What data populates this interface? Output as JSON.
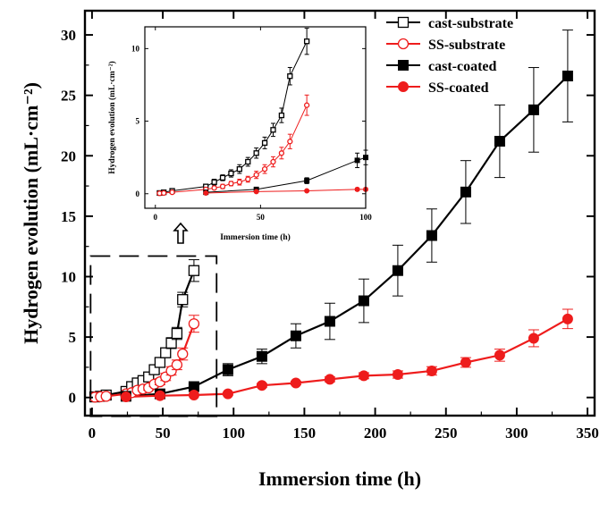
{
  "chart_data": [
    {
      "type": "line",
      "role": "main",
      "xlabel": "Immersion time (h)",
      "ylabel": "Hydrogen evolution (mL·cm⁻²)",
      "xlim": [
        -5,
        355
      ],
      "ylim": [
        -1.5,
        32
      ],
      "xticks": [
        0,
        50,
        100,
        150,
        200,
        250,
        300,
        350
      ],
      "xtick_labels": [
        "0",
        "50",
        "100",
        "150",
        "200",
        "250",
        "300",
        "350"
      ],
      "yticks": [
        0,
        5,
        10,
        15,
        20,
        25,
        30
      ],
      "ytick_labels": [
        "0",
        "5",
        "10",
        "15",
        "20",
        "25",
        "30"
      ],
      "legend_position": "top-right",
      "series": [
        {
          "name": "cast-substrate",
          "color": "#000000",
          "marker": "open-square",
          "x": [
            2,
            6,
            10,
            24,
            28,
            32,
            36,
            40,
            44,
            48,
            52,
            56,
            60,
            64,
            72
          ],
          "y": [
            0.05,
            0.1,
            0.2,
            0.5,
            0.9,
            1.2,
            1.4,
            1.7,
            2.3,
            2.9,
            3.7,
            4.5,
            5.3,
            8.1,
            10.5
          ],
          "err": [
            0.05,
            0.05,
            0.1,
            0.15,
            0.2,
            0.2,
            0.25,
            0.3,
            0.3,
            0.35,
            0.4,
            0.45,
            0.5,
            0.6,
            0.9
          ]
        },
        {
          "name": "SS-substrate",
          "color": "#ee1c1c",
          "marker": "open-circle",
          "x": [
            2,
            6,
            10,
            24,
            28,
            32,
            36,
            40,
            44,
            48,
            52,
            56,
            60,
            64,
            72
          ],
          "y": [
            0.03,
            0.06,
            0.1,
            0.3,
            0.4,
            0.6,
            0.7,
            0.8,
            1.1,
            1.3,
            1.7,
            2.2,
            2.7,
            3.6,
            6.1
          ],
          "err": [
            0.03,
            0.05,
            0.05,
            0.1,
            0.1,
            0.15,
            0.15,
            0.2,
            0.2,
            0.25,
            0.3,
            0.35,
            0.4,
            0.5,
            0.7
          ]
        },
        {
          "name": "cast-coated",
          "color": "#000000",
          "marker": "filled-square",
          "x": [
            24,
            48,
            72,
            96,
            120,
            144,
            168,
            192,
            216,
            240,
            264,
            288,
            312,
            336
          ],
          "y": [
            0.1,
            0.3,
            0.9,
            2.3,
            3.4,
            5.1,
            6.3,
            8.0,
            10.5,
            13.4,
            17.0,
            21.2,
            23.8,
            26.6
          ],
          "err": [
            0.05,
            0.1,
            0.2,
            0.5,
            0.6,
            1.0,
            1.5,
            1.8,
            2.1,
            2.2,
            2.6,
            3.0,
            3.5,
            3.8
          ]
        },
        {
          "name": "SS-coated",
          "color": "#ee1c1c",
          "marker": "filled-circle",
          "x": [
            24,
            48,
            72,
            96,
            120,
            144,
            168,
            192,
            216,
            240,
            264,
            288,
            312,
            336
          ],
          "y": [
            0.05,
            0.15,
            0.2,
            0.3,
            1.0,
            1.2,
            1.5,
            1.8,
            1.9,
            2.2,
            2.9,
            3.5,
            4.9,
            6.5
          ],
          "err": [
            0.03,
            0.05,
            0.05,
            0.1,
            0.15,
            0.15,
            0.2,
            0.25,
            0.3,
            0.35,
            0.4,
            0.5,
            0.7,
            0.8
          ]
        }
      ]
    },
    {
      "type": "line",
      "role": "inset",
      "xlabel": "Immersion time (h)",
      "ylabel": "Hydrogen evolution (mL·cm⁻²)",
      "xlim": [
        -5,
        100
      ],
      "ylim": [
        -1,
        11.5
      ],
      "xticks": [
        0,
        50,
        100
      ],
      "xtick_labels": [
        "0",
        "50",
        "100"
      ],
      "yticks": [
        0,
        5,
        10
      ],
      "ytick_labels": [
        "0",
        "5",
        "10"
      ],
      "series": [
        {
          "name": "cast-substrate",
          "color": "#000000",
          "marker": "open-square",
          "x": [
            2,
            4,
            8,
            24,
            28,
            32,
            36,
            40,
            44,
            48,
            52,
            56,
            60,
            64,
            72
          ],
          "y": [
            0.05,
            0.1,
            0.2,
            0.5,
            0.8,
            1.1,
            1.4,
            1.7,
            2.2,
            2.8,
            3.5,
            4.4,
            5.4,
            8.1,
            10.5
          ],
          "err": [
            0.05,
            0.05,
            0.1,
            0.15,
            0.2,
            0.2,
            0.25,
            0.3,
            0.3,
            0.35,
            0.4,
            0.45,
            0.5,
            0.6,
            0.9
          ]
        },
        {
          "name": "SS-substrate",
          "color": "#ee1c1c",
          "marker": "open-circle",
          "x": [
            2,
            4,
            8,
            24,
            28,
            32,
            36,
            40,
            44,
            48,
            52,
            56,
            60,
            64,
            72
          ],
          "y": [
            0.03,
            0.05,
            0.1,
            0.3,
            0.4,
            0.5,
            0.7,
            0.8,
            1.0,
            1.3,
            1.7,
            2.2,
            2.8,
            3.6,
            6.1
          ],
          "err": [
            0.03,
            0.05,
            0.05,
            0.1,
            0.1,
            0.15,
            0.15,
            0.2,
            0.2,
            0.25,
            0.3,
            0.35,
            0.4,
            0.5,
            0.7
          ]
        },
        {
          "name": "cast-coated",
          "color": "#000000",
          "marker": "filled-square",
          "x": [
            24,
            48,
            72,
            96,
            100
          ],
          "y": [
            0.1,
            0.3,
            0.9,
            2.3,
            2.5
          ],
          "err": [
            0.05,
            0.1,
            0.2,
            0.5,
            0.5
          ]
        },
        {
          "name": "SS-coated",
          "color": "#ee1c1c",
          "marker": "filled-circle",
          "x": [
            24,
            48,
            72,
            96,
            100
          ],
          "y": [
            0.05,
            0.15,
            0.2,
            0.3,
            0.3
          ],
          "err": [
            0.03,
            0.05,
            0.05,
            0.1,
            0.1
          ]
        }
      ]
    }
  ]
}
